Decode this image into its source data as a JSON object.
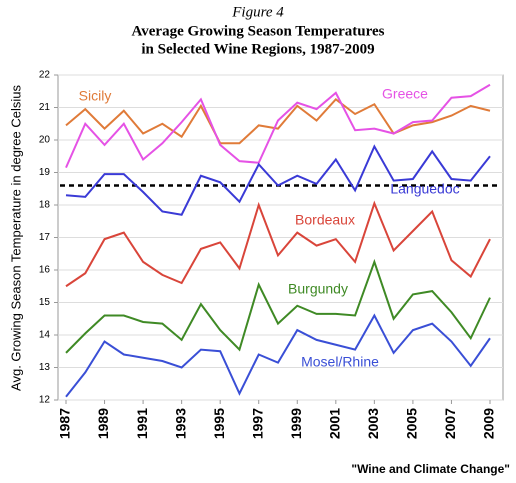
{
  "chart_data": {
    "type": "line",
    "figure_label": "Figure 4",
    "title": "Average Growing Season Temperatures",
    "subtitle": "in Selected Wine Regions, 1987-2009",
    "y_label": "Avg. Growing Season Temperature in degree Celsius",
    "source": "\"Wine and Climate Change\"",
    "x": [
      1987,
      1988,
      1989,
      1990,
      1991,
      1992,
      1993,
      1994,
      1995,
      1996,
      1997,
      1998,
      1999,
      2000,
      2001,
      2002,
      2003,
      2004,
      2005,
      2006,
      2007,
      2008,
      2009
    ],
    "xlim": [
      1987,
      2009
    ],
    "xticks": [
      1987,
      1989,
      1991,
      1993,
      1995,
      1997,
      1999,
      2001,
      2003,
      2005,
      2007,
      2009
    ],
    "ylim": [
      12,
      22
    ],
    "yticks": [
      12,
      13,
      14,
      15,
      16,
      17,
      18,
      19,
      20,
      21,
      22
    ],
    "grid": true,
    "reference_line": 18.6,
    "series": [
      {
        "name": "Sicily",
        "color": "#e07b39",
        "values": [
          20.45,
          20.95,
          20.35,
          20.9,
          20.2,
          20.5,
          20.1,
          21.05,
          19.9,
          19.9,
          20.45,
          20.35,
          21.05,
          20.6,
          21.25,
          20.8,
          21.1,
          20.2,
          20.45,
          20.55,
          20.75,
          21.05,
          20.9
        ]
      },
      {
        "name": "Greece",
        "color": "#e552e5",
        "values": [
          19.15,
          20.5,
          19.85,
          20.5,
          19.4,
          19.9,
          20.55,
          21.25,
          19.85,
          19.35,
          19.3,
          20.6,
          21.15,
          20.95,
          21.45,
          20.3,
          20.35,
          20.2,
          20.55,
          20.6,
          21.3,
          21.35,
          21.7
        ]
      },
      {
        "name": "Languedoc",
        "color": "#3a3ad6",
        "values": [
          18.3,
          18.25,
          18.95,
          18.95,
          18.4,
          17.8,
          17.7,
          18.9,
          18.7,
          18.1,
          19.25,
          18.6,
          18.9,
          18.65,
          19.4,
          18.45,
          19.8,
          18.75,
          18.8,
          19.65,
          18.8,
          18.75,
          19.5
        ]
      },
      {
        "name": "Bordeaux",
        "color": "#d9453a",
        "values": [
          15.5,
          15.9,
          16.95,
          17.15,
          16.25,
          15.85,
          15.6,
          16.65,
          16.85,
          16.05,
          18.0,
          16.45,
          17.15,
          16.75,
          16.95,
          16.25,
          18.05,
          16.6,
          17.2,
          17.8,
          16.3,
          15.8,
          16.95
        ]
      },
      {
        "name": "Burgundy",
        "color": "#3f8a25",
        "values": [
          13.45,
          14.05,
          14.6,
          14.6,
          14.4,
          14.35,
          13.85,
          14.95,
          14.15,
          13.55,
          15.55,
          14.35,
          14.9,
          14.65,
          14.65,
          14.6,
          16.25,
          14.5,
          15.25,
          15.35,
          14.7,
          13.9,
          15.15
        ]
      },
      {
        "name": "Mosel/Rhine",
        "color": "#3a4fd6",
        "values": [
          12.1,
          12.85,
          13.8,
          13.4,
          13.3,
          13.2,
          13.0,
          13.55,
          13.5,
          12.2,
          13.4,
          13.15,
          14.15,
          13.85,
          13.7,
          13.55,
          14.6,
          13.45,
          14.15,
          14.35,
          13.8,
          13.05,
          13.9
        ]
      }
    ]
  }
}
